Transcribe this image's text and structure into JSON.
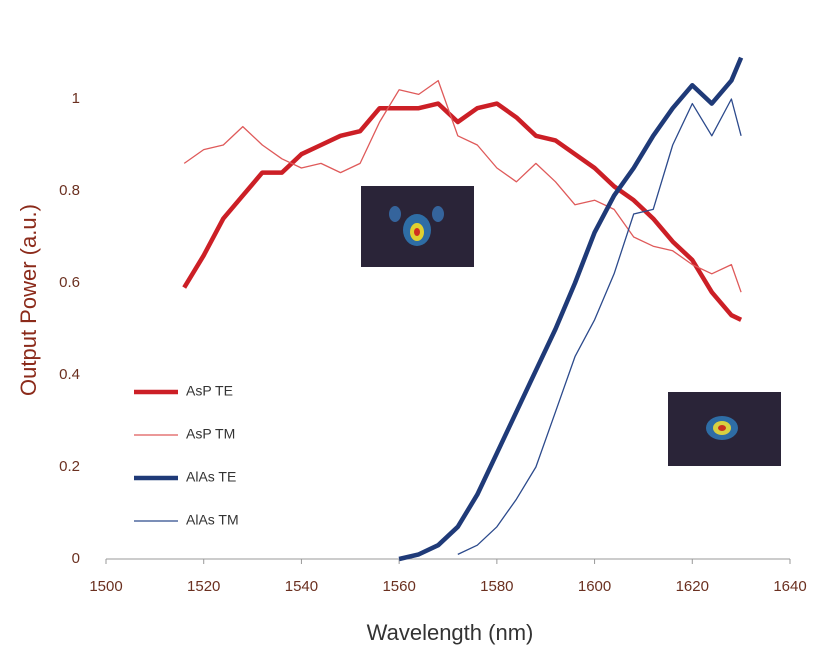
{
  "chart_data": {
    "type": "line",
    "x_label": "Wavelength (nm)",
    "y_label": "Output Power (a.u.)",
    "x": [
      1516,
      1520,
      1524,
      1528,
      1532,
      1536,
      1540,
      1544,
      1548,
      1552,
      1556,
      1560,
      1564,
      1568,
      1572,
      1576,
      1580,
      1584,
      1588,
      1592,
      1596,
      1600,
      1604,
      1608,
      1612,
      1616,
      1620,
      1624,
      1628,
      1630
    ],
    "series": [
      {
        "name": "AsP TE",
        "color": "#cc1f26",
        "width": 4.5,
        "values": [
          0.59,
          0.66,
          0.74,
          0.79,
          0.84,
          0.84,
          0.88,
          0.9,
          0.92,
          0.93,
          0.98,
          0.98,
          0.98,
          0.99,
          0.95,
          0.98,
          0.99,
          0.96,
          0.92,
          0.91,
          0.88,
          0.85,
          0.81,
          0.78,
          0.74,
          0.69,
          0.65,
          0.58,
          0.53,
          0.52
        ]
      },
      {
        "name": "AsP TM",
        "color": "#df5a5a",
        "width": 1.3,
        "values": [
          0.86,
          0.89,
          0.9,
          0.94,
          0.9,
          0.87,
          0.85,
          0.86,
          0.84,
          0.86,
          0.95,
          1.02,
          1.01,
          1.04,
          0.92,
          0.9,
          0.85,
          0.82,
          0.86,
          0.82,
          0.77,
          0.78,
          0.76,
          0.7,
          0.68,
          0.67,
          0.64,
          0.62,
          0.64,
          0.58
        ]
      },
      {
        "name": "AlAs TE",
        "color": "#1f3a78",
        "width": 4.5,
        "values": [
          null,
          null,
          null,
          null,
          null,
          null,
          null,
          null,
          null,
          null,
          null,
          0.0,
          0.01,
          0.03,
          0.07,
          0.14,
          0.23,
          0.32,
          0.41,
          0.5,
          0.6,
          0.71,
          0.79,
          0.85,
          0.92,
          0.98,
          1.03,
          0.99,
          1.04,
          1.09
        ]
      },
      {
        "name": "AlAs TM",
        "color": "#2c4a8c",
        "width": 1.3,
        "values": [
          null,
          null,
          null,
          null,
          null,
          null,
          null,
          null,
          null,
          null,
          null,
          null,
          null,
          null,
          0.01,
          0.03,
          0.07,
          0.13,
          0.2,
          0.32,
          0.44,
          0.52,
          0.62,
          0.75,
          0.76,
          0.9,
          0.99,
          0.92,
          1.0,
          0.92
        ]
      }
    ],
    "xlim": [
      1500,
      1640
    ],
    "xticks": [
      1500,
      1520,
      1540,
      1560,
      1580,
      1600,
      1620,
      1640
    ],
    "ylim": [
      0,
      1.15
    ],
    "yticks": [
      0,
      0.2,
      0.4,
      0.6,
      0.8,
      1
    ],
    "legend": "left",
    "grid": false
  }
}
